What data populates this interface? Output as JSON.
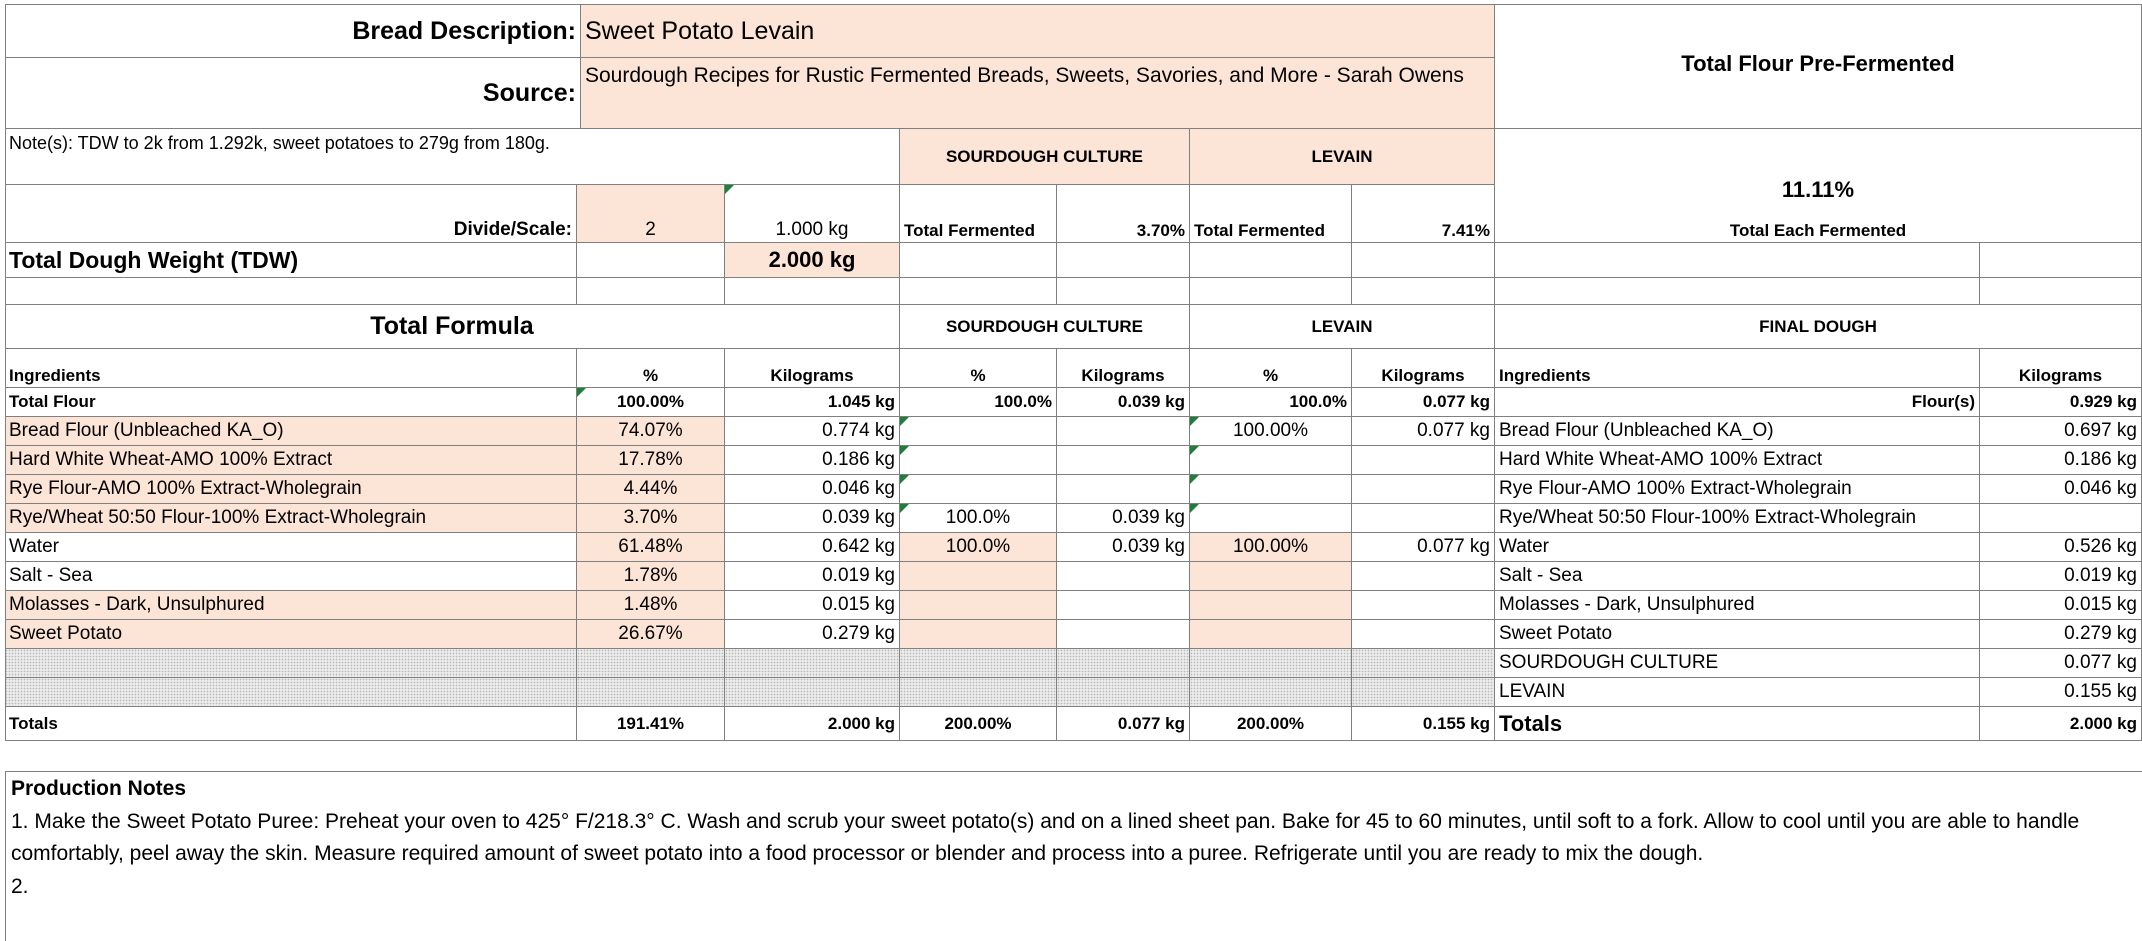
{
  "header": {
    "bread_desc_label": "Bread Description:",
    "bread_desc_value": "Sweet Potato Levain",
    "source_label": "Source:",
    "source_value": "Sourdough Recipes for Rustic Fermented Breads, Sweets, Savories, and More - Sarah Owens",
    "note": "Note(s): TDW to 2k from 1.292k, sweet potatoes to 279g from 180g.",
    "sourdough_culture": "SOURDOUGH CULTURE",
    "levain": "LEVAIN",
    "total_flour_prefermented_label": "Total Flour Pre-Fermented",
    "total_flour_prefermented_value": "11.11%",
    "divide_scale_label": "Divide/Scale:",
    "divide_scale_value": "2",
    "unit_weight": "1.000 kg",
    "total_fermented_label": "Total Fermented",
    "sourdough_total_fermented": "3.70%",
    "levain_total_fermented": "7.41%",
    "total_each_fermented": "Total Each Fermented",
    "tdw_label": "Total Dough Weight (TDW)",
    "tdw_value": "2.000 kg"
  },
  "section": {
    "total_formula": "Total Formula",
    "sourdough_culture": "SOURDOUGH CULTURE",
    "levain": "LEVAIN",
    "final_dough": "FINAL DOUGH"
  },
  "columns": {
    "ingredients": "Ingredients",
    "pct": "%",
    "kg": "Kilograms",
    "sd_pct": "%",
    "sd_kg": "Kilograms",
    "lv_pct": "%",
    "lv_kg": "Kilograms",
    "fd_ingredients": "Ingredients",
    "fd_kg": "Kilograms"
  },
  "rows": [
    {
      "name": "Total Flour",
      "pct": "100.00%",
      "kg": "1.045 kg",
      "sd_pct": "100.0%",
      "sd_kg": "0.039 kg",
      "lv_pct": "100.0%",
      "lv_kg": "0.077 kg",
      "fd_name": "Flour(s)",
      "fd_kg": "0.929 kg"
    },
    {
      "name": "Bread Flour (Unbleached KA_O)",
      "pct": "74.07%",
      "kg": "0.774 kg",
      "sd_pct": "",
      "sd_kg": "",
      "lv_pct": "100.00%",
      "lv_kg": "0.077 kg",
      "fd_name": "Bread Flour (Unbleached KA_O)",
      "fd_kg": "0.697 kg"
    },
    {
      "name": "Hard White Wheat-AMO 100% Extract",
      "pct": "17.78%",
      "kg": "0.186 kg",
      "sd_pct": "",
      "sd_kg": "",
      "lv_pct": "",
      "lv_kg": "",
      "fd_name": "Hard White Wheat-AMO 100% Extract",
      "fd_kg": "0.186 kg"
    },
    {
      "name": "Rye Flour-AMO 100% Extract-Wholegrain",
      "pct": "4.44%",
      "kg": "0.046 kg",
      "sd_pct": "",
      "sd_kg": "",
      "lv_pct": "",
      "lv_kg": "",
      "fd_name": "Rye Flour-AMO 100% Extract-Wholegrain",
      "fd_kg": "0.046 kg"
    },
    {
      "name": "Rye/Wheat 50:50 Flour-100% Extract-Wholegrain",
      "pct": "3.70%",
      "kg": "0.039 kg",
      "sd_pct": "100.0%",
      "sd_kg": "0.039 kg",
      "lv_pct": "",
      "lv_kg": "",
      "fd_name": "Rye/Wheat 50:50 Flour-100% Extract-Wholegrain",
      "fd_kg": ""
    },
    {
      "name": "Water",
      "pct": "61.48%",
      "kg": "0.642 kg",
      "sd_pct": "100.0%",
      "sd_kg": "0.039 kg",
      "lv_pct": "100.00%",
      "lv_kg": "0.077 kg",
      "fd_name": "Water",
      "fd_kg": "0.526 kg"
    },
    {
      "name": "Salt - Sea",
      "pct": "1.78%",
      "kg": "0.019 kg",
      "sd_pct": "",
      "sd_kg": "",
      "lv_pct": "",
      "lv_kg": "",
      "fd_name": "Salt - Sea",
      "fd_kg": "0.019 kg"
    },
    {
      "name": "Molasses - Dark, Unsulphured",
      "pct": "1.48%",
      "kg": "0.015 kg",
      "sd_pct": "",
      "sd_kg": "",
      "lv_pct": "",
      "lv_kg": "",
      "fd_name": "Molasses - Dark, Unsulphured",
      "fd_kg": "0.015 kg"
    },
    {
      "name": "Sweet Potato",
      "pct": "26.67%",
      "kg": "0.279 kg",
      "sd_pct": "",
      "sd_kg": "",
      "lv_pct": "",
      "lv_kg": "",
      "fd_name": "Sweet Potato",
      "fd_kg": "0.279 kg"
    },
    {
      "name": "",
      "pct": "",
      "kg": "",
      "sd_pct": "",
      "sd_kg": "",
      "lv_pct": "",
      "lv_kg": "",
      "fd_name": "SOURDOUGH CULTURE",
      "fd_kg": "0.077 kg"
    },
    {
      "name": "",
      "pct": "",
      "kg": "",
      "sd_pct": "",
      "sd_kg": "",
      "lv_pct": "",
      "lv_kg": "",
      "fd_name": "LEVAIN",
      "fd_kg": "0.155 kg"
    }
  ],
  "totals": {
    "label": "Totals",
    "pct": "191.41%",
    "kg": "2.000 kg",
    "sd_pct": "200.00%",
    "sd_kg": "0.077 kg",
    "lv_pct": "200.00%",
    "lv_kg": "0.155 kg",
    "fd_label": "Totals",
    "fd_kg": "2.000 kg"
  },
  "production_notes": {
    "title": "Production Notes",
    "lines": [
      "1. Make the Sweet Potato Puree: Preheat your oven to 425° F/218.3° C. Wash and scrub your sweet potato(s) and on a lined sheet pan. Bake for 45 to 60 minutes, until soft to a fork. Allow to cool until you are able to handle comfortably, peel away the skin. Measure required amount of sweet potato into a food processor or blender and process into a puree.  Refrigerate until you are ready to mix the dough.",
      "2."
    ]
  }
}
